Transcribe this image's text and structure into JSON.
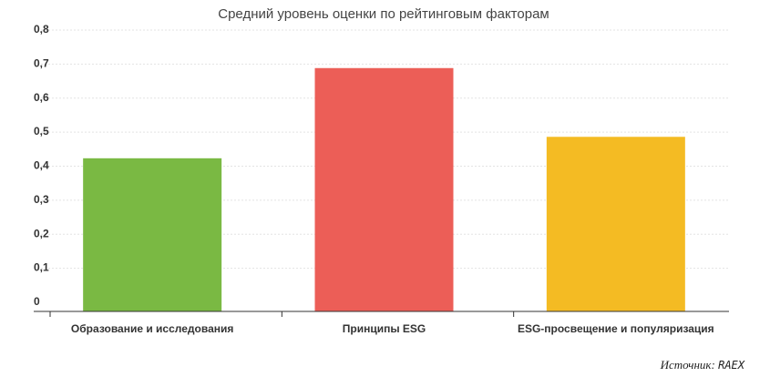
{
  "chart_data": {
    "type": "bar",
    "title": "Средний уровень оценки по рейтинговым факторам",
    "categories": [
      "Образование и исследования",
      "Принципы ESG",
      "ESG-просвещение и популяризация"
    ],
    "values": [
      0.45,
      0.715,
      0.513
    ],
    "colors": [
      "#7ab943",
      "#ec5e57",
      "#f4bb23"
    ],
    "ylim": [
      0,
      0.8
    ],
    "yticks": [
      "0",
      "0,1",
      "0,2",
      "0,3",
      "0,4",
      "0,5",
      "0,6",
      "0,7",
      "0,8"
    ],
    "grid": true
  },
  "source": {
    "label": "Источник:",
    "value": "RAEX"
  }
}
